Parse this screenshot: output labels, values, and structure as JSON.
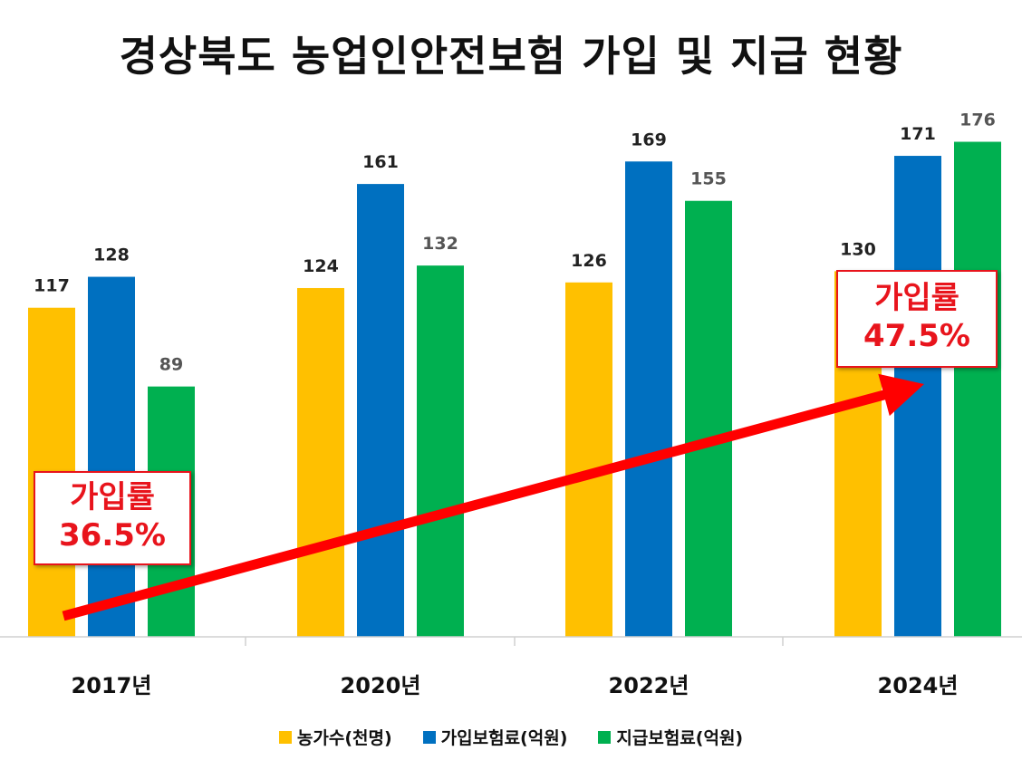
{
  "title": "경상북도 농업인안전보험 가입 및 지급 현황",
  "chart_data": {
    "type": "bar",
    "title": "경상북도 농업인안전보험 가입 및 지급 현황",
    "categories": [
      "2017년",
      "2020년",
      "2022년",
      "2024년"
    ],
    "series": [
      {
        "name": "농가수(천명)",
        "values": [
          117,
          124,
          126,
          130
        ],
        "color": "#FFC000"
      },
      {
        "name": "가입보험료(억원)",
        "values": [
          128,
          161,
          169,
          171
        ],
        "color": "#0070C0"
      },
      {
        "name": "지급보험료(억원)",
        "values": [
          89,
          132,
          155,
          176
        ],
        "color": "#00B050"
      }
    ],
    "ylim": [
      0,
      180
    ],
    "grid": false,
    "legend": "bottom"
  },
  "annotations": [
    {
      "label": "가입률",
      "value": "36.5%"
    },
    {
      "label": "가입률",
      "value": "47.5%"
    }
  ],
  "arrow_color": "#FF0000"
}
